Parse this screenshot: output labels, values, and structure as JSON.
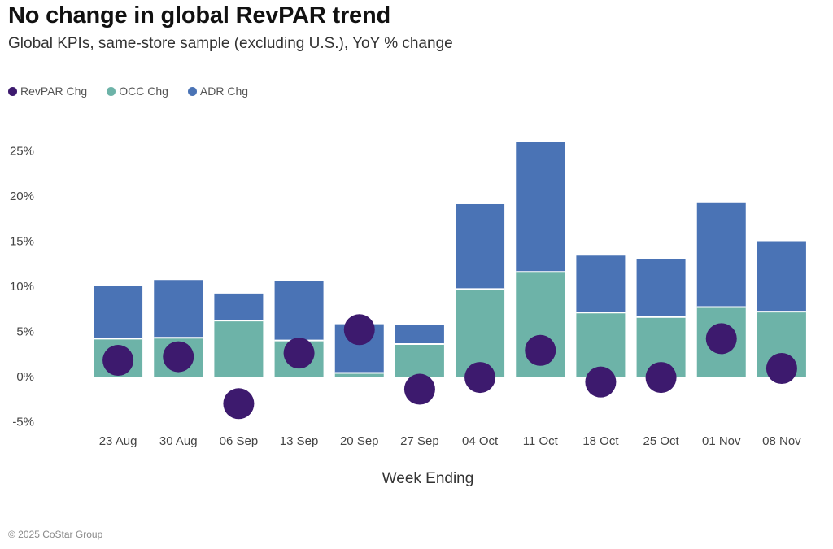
{
  "chart_data": {
    "type": "bar",
    "title": "No change in global RevPAR trend",
    "subtitle": "Global KPIs, same-store sample (excluding U.S.), YoY % change",
    "xlabel": "Week Ending",
    "ylabel": "",
    "ylim": [
      -5,
      25
    ],
    "yticks": [
      -5,
      0,
      5,
      10,
      15,
      20,
      25
    ],
    "ytick_labels": [
      "-5%",
      "0%",
      "5%",
      "10%",
      "15%",
      "20%",
      "25%"
    ],
    "categories": [
      "23 Aug",
      "30 Aug",
      "06 Sep",
      "13 Sep",
      "20 Sep",
      "27 Sep",
      "04 Oct",
      "11 Oct",
      "18 Oct",
      "25 Oct",
      "01 Nov",
      "08 Nov"
    ],
    "series": [
      {
        "name": "OCC Chg",
        "kind": "stacked-bar",
        "color": "#6db3a8",
        "values": [
          4.2,
          4.3,
          6.2,
          4.0,
          0.4,
          3.6,
          9.7,
          11.6,
          7.1,
          6.6,
          7.7,
          7.2
        ]
      },
      {
        "name": "ADR Chg",
        "kind": "stacked-bar",
        "color": "#4a73b5",
        "values": [
          5.8,
          6.4,
          3.0,
          6.6,
          5.4,
          2.1,
          9.4,
          14.4,
          6.3,
          6.4,
          11.6,
          7.8
        ]
      },
      {
        "name": "RevPAR Chg",
        "kind": "dot",
        "color": "#3d1a6e",
        "values": [
          1.8,
          2.2,
          -3.0,
          2.6,
          5.2,
          -1.4,
          -0.1,
          2.9,
          -0.6,
          -0.1,
          4.2,
          0.9
        ]
      }
    ],
    "legend": [
      "RevPAR Chg",
      "OCC Chg",
      "ADR Chg"
    ],
    "legend_position": "top-left"
  },
  "footer": "© 2025 CoStar Group"
}
